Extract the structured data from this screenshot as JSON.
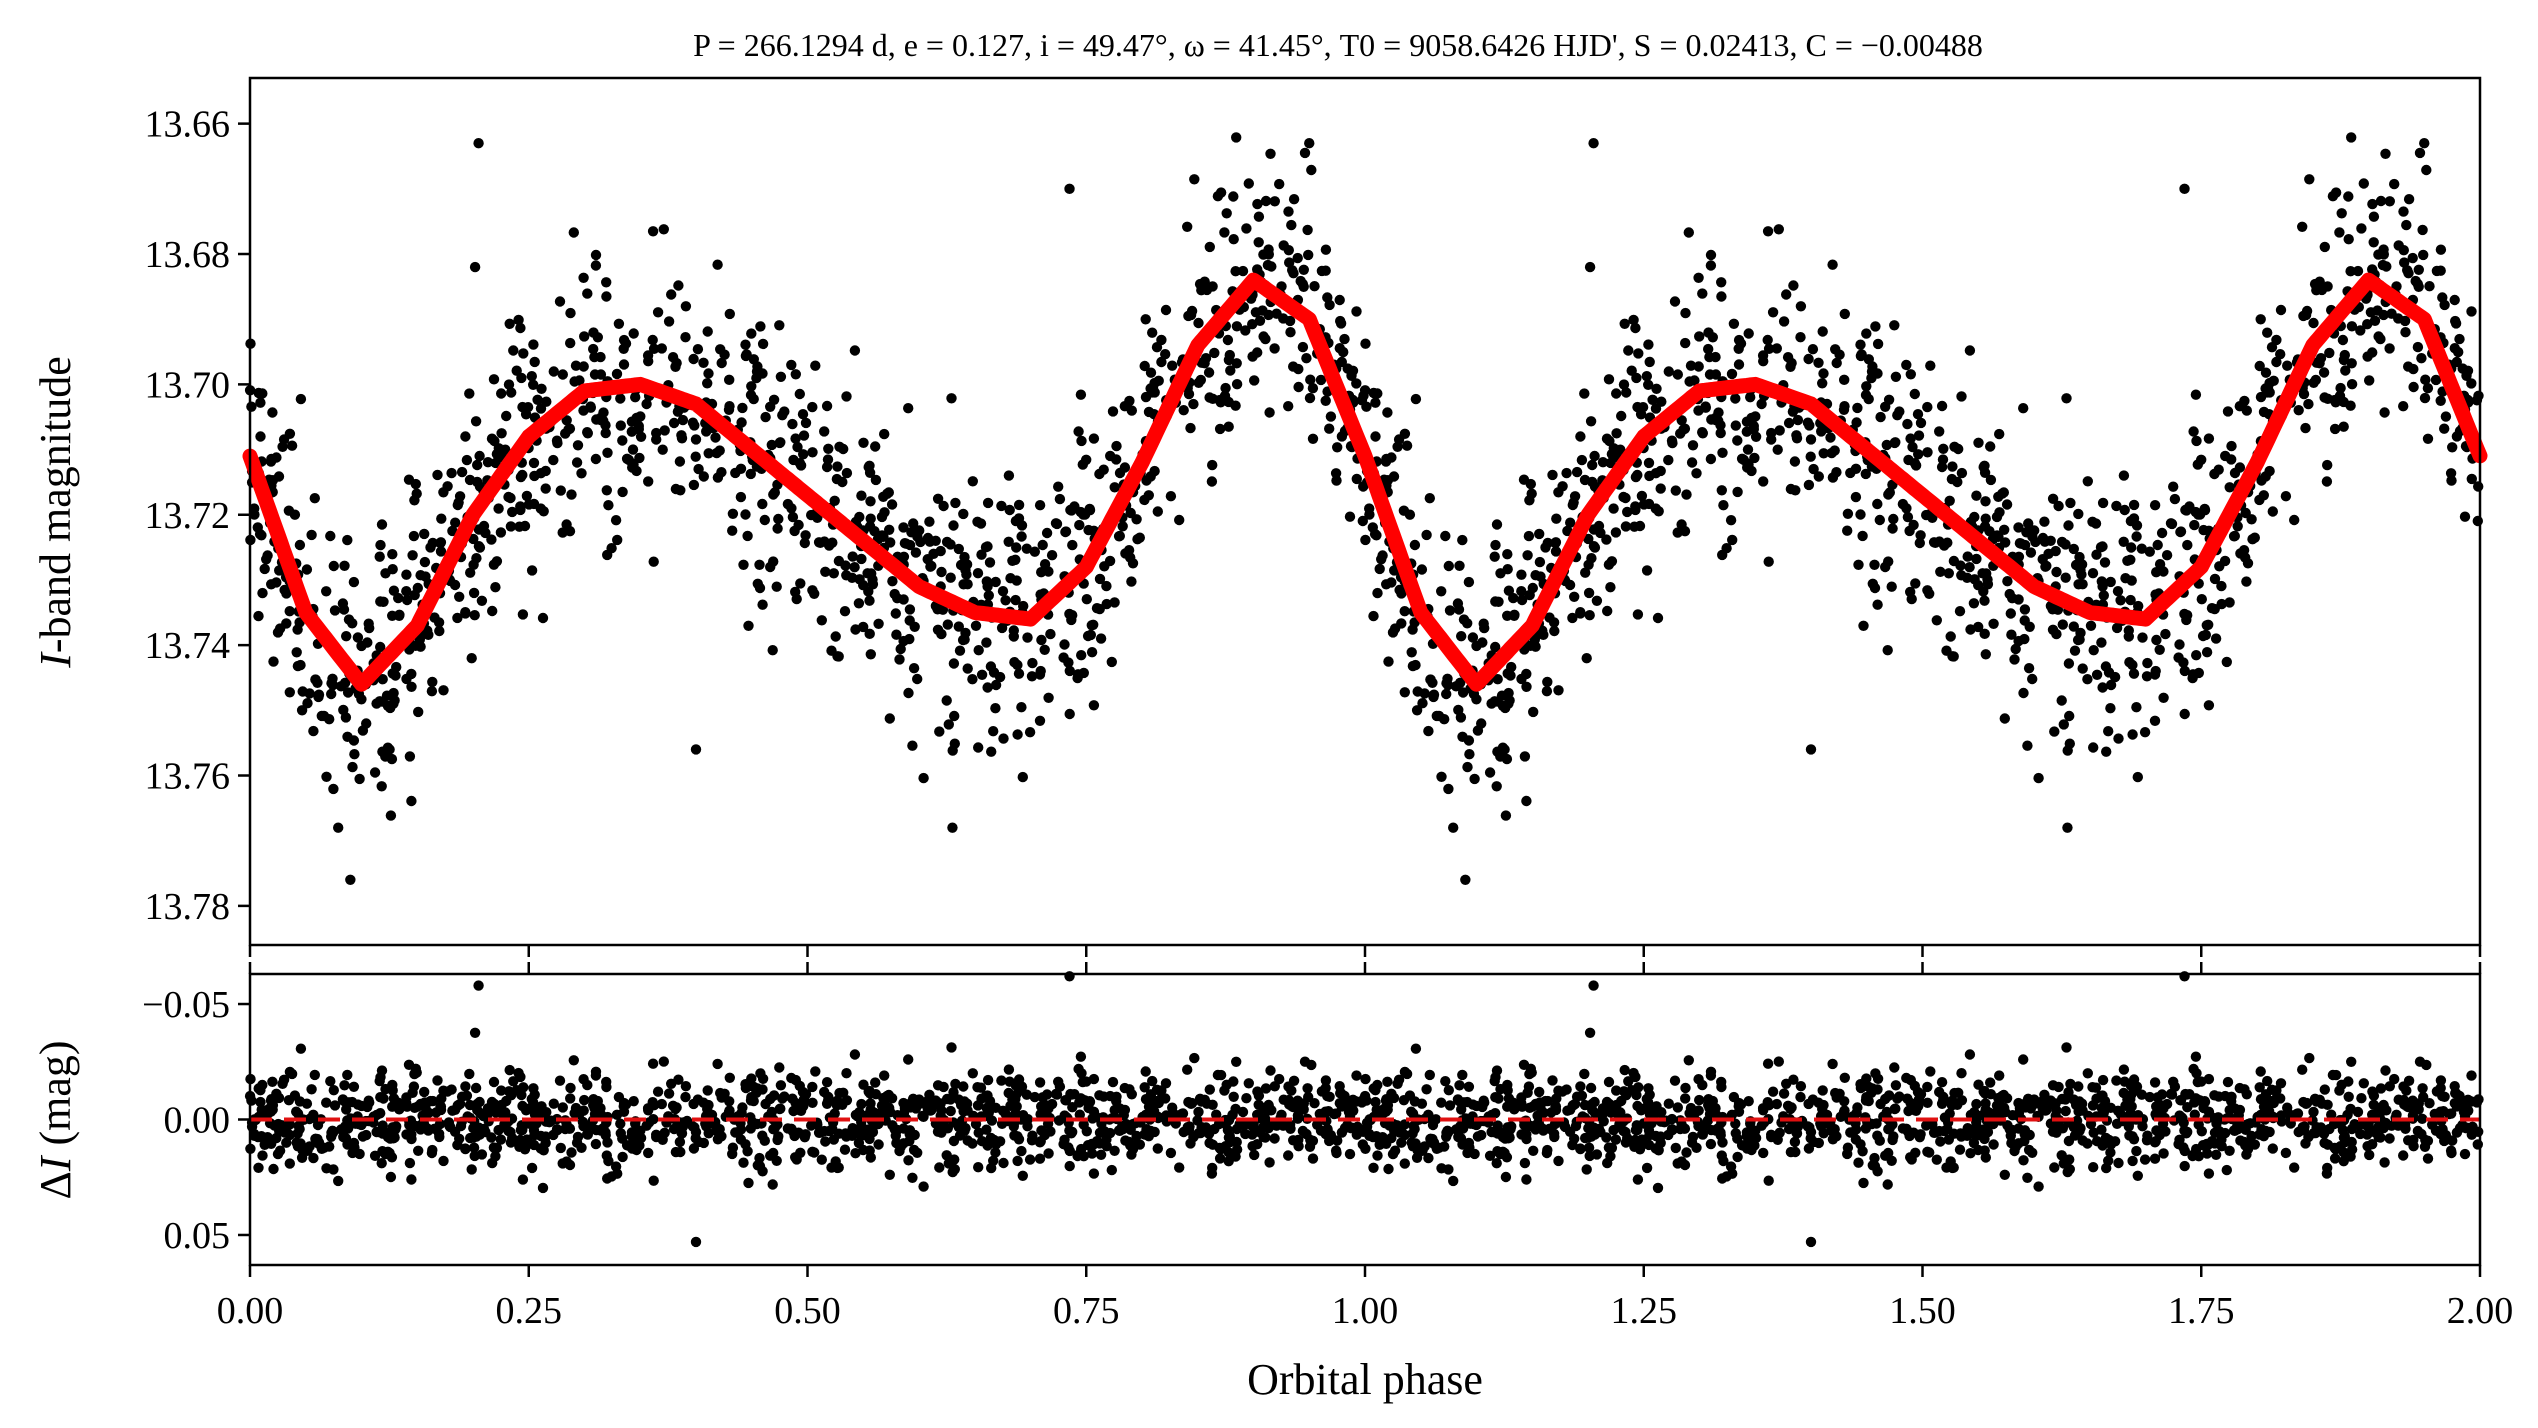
{
  "figure": {
    "title": "P = 266.1294 d, e = 0.127, i = 49.47°, ω = 41.45°, T0 = 9058.6426 HJD', S = 0.02413, C = −0.00488",
    "colors": {
      "data_points": "#000000",
      "model_curve": "#ff0000",
      "residual_zero_line": "#e01010"
    }
  },
  "chart_data": [
    {
      "type": "scatter",
      "panel": "light curve",
      "ylabel": "I-band magnitude",
      "xlabel": "",
      "xlim": [
        0,
        2
      ],
      "ylim": [
        13.786,
        13.653
      ],
      "y_inverted": true,
      "x_ticks": [
        0,
        0.25,
        0.5,
        0.75,
        1.0,
        1.25,
        1.5,
        1.75,
        2.0
      ],
      "y_ticks": [
        "13.66",
        "13.68",
        "13.70",
        "13.72",
        "13.74",
        "13.76",
        "13.78"
      ],
      "grid": false,
      "series": [
        {
          "kind": "points",
          "approx_count": 2400,
          "color": "#000000",
          "outliers": [
            {
              "x": 0.205,
              "y": 13.663
            },
            {
              "x": 0.735,
              "y": 13.67
            },
            {
              "x": 0.95,
              "y": 13.663
            },
            {
              "x": 1.205,
              "y": 13.663
            },
            {
              "x": 1.735,
              "y": 13.67
            },
            {
              "x": 1.95,
              "y": 13.663
            },
            {
              "x": 0.4,
              "y": 13.756
            },
            {
              "x": 1.4,
              "y": 13.756
            },
            {
              "x": 0.63,
              "y": 13.768
            },
            {
              "x": 1.63,
              "y": 13.768
            },
            {
              "x": 0.09,
              "y": 13.776
            },
            {
              "x": 1.09,
              "y": 13.776
            }
          ]
        },
        {
          "kind": "model",
          "color": "#ff0000",
          "x": [
            0.0,
            0.05,
            0.1,
            0.15,
            0.2,
            0.25,
            0.3,
            0.35,
            0.4,
            0.45,
            0.5,
            0.55,
            0.6,
            0.65,
            0.7,
            0.75,
            0.8,
            0.85,
            0.9,
            0.95,
            1.0,
            1.05,
            1.1,
            1.15,
            1.2,
            1.25,
            1.3,
            1.35,
            1.4,
            1.45,
            1.5,
            1.55,
            1.6,
            1.65,
            1.7,
            1.75,
            1.8,
            1.85,
            1.9,
            1.95,
            2.0
          ],
          "y": [
            13.711,
            13.735,
            13.746,
            13.737,
            13.72,
            13.708,
            13.701,
            13.7,
            13.703,
            13.71,
            13.717,
            13.724,
            13.731,
            13.735,
            13.736,
            13.728,
            13.712,
            13.694,
            13.684,
            13.69,
            13.711,
            13.735,
            13.746,
            13.737,
            13.72,
            13.708,
            13.701,
            13.7,
            13.703,
            13.71,
            13.717,
            13.724,
            13.731,
            13.735,
            13.736,
            13.728,
            13.712,
            13.694,
            13.684,
            13.69,
            13.711
          ]
        }
      ]
    },
    {
      "type": "scatter",
      "panel": "residuals",
      "xlabel": "Orbital phase",
      "ylabel": "ΔI (mag)",
      "xlim": [
        0,
        2
      ],
      "ylim": [
        0.063,
        -0.063
      ],
      "y_inverted": true,
      "x_ticks": [
        0,
        0.25,
        0.5,
        0.75,
        1.0,
        1.25,
        1.5,
        1.75,
        2.0
      ],
      "x_tick_labels": [
        "0.00",
        "0.25",
        "0.50",
        "0.75",
        "1.00",
        "1.25",
        "1.50",
        "1.75",
        "2.00"
      ],
      "y_ticks": [
        -0.05,
        0,
        0.05
      ],
      "y_tick_labels": [
        "−0.05",
        "0.00",
        "0.05"
      ],
      "grid": false,
      "series": [
        {
          "kind": "points",
          "approx_count": 2400,
          "color": "#000000",
          "outliers": [
            {
              "x": 0.205,
              "y": -0.058
            },
            {
              "x": 0.735,
              "y": -0.062
            },
            {
              "x": 1.205,
              "y": -0.058
            },
            {
              "x": 1.735,
              "y": -0.062
            },
            {
              "x": 0.4,
              "y": 0.053
            },
            {
              "x": 1.4,
              "y": 0.053
            }
          ]
        },
        {
          "kind": "zero-line",
          "y": 0,
          "color": "#e01010",
          "style": "dashed"
        }
      ]
    }
  ]
}
